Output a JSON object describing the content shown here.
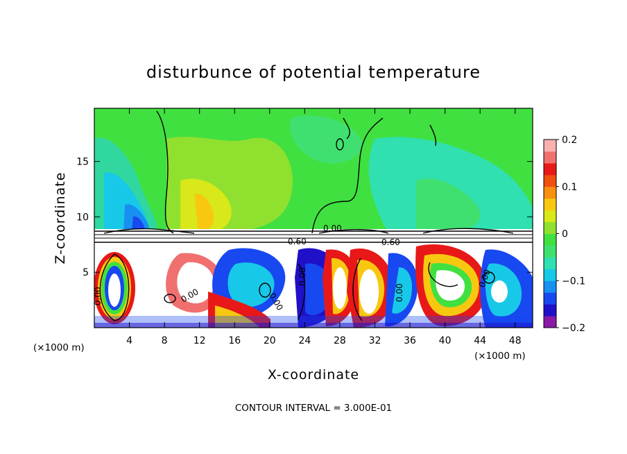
{
  "chart_data": {
    "type": "heatmap",
    "title": "disturbunce of potential temperature",
    "xlabel": "X-coordinate",
    "ylabel": "Z-coordinate",
    "x_unit": "(×1000 m)",
    "x_unit_right": "(×1000 m)",
    "xlim": [
      0,
      50
    ],
    "ylim": [
      0,
      19.8
    ],
    "x_ticks": [
      4,
      8,
      12,
      16,
      20,
      24,
      28,
      32,
      36,
      40,
      44,
      48
    ],
    "y_ticks": [
      5,
      10,
      15
    ],
    "colorbar": {
      "range": [
        -0.2,
        0.2
      ],
      "labels": [
        "0.2",
        "0.1",
        "0",
        "−0.1",
        "−0.2"
      ],
      "colors": [
        "#8a1aa8",
        "#2010c8",
        "#1848f0",
        "#1890f0",
        "#18c8e8",
        "#30e0b0",
        "#40e070",
        "#40e040",
        "#90e030",
        "#d8e818",
        "#f8c810",
        "#f89010",
        "#f05010",
        "#e81818",
        "#f07070",
        "#f8b0b0"
      ]
    },
    "contour_labels": [
      "0.00",
      "0.60",
      "0.60",
      "0.00",
      "0.00",
      "0.00",
      "0.00",
      "0.00",
      "0.00"
    ],
    "footer": "CONTOUR INTERVAL = 3.000E-01"
  }
}
